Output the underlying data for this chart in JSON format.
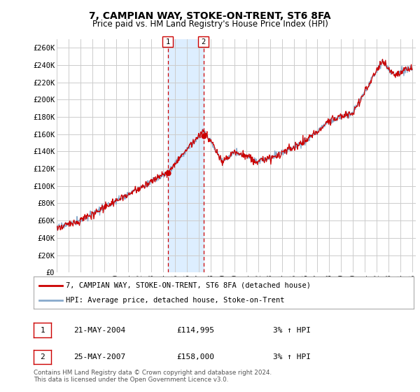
{
  "title": "7, CAMPIAN WAY, STOKE-ON-TRENT, ST6 8FA",
  "subtitle": "Price paid vs. HM Land Registry's House Price Index (HPI)",
  "ylabel_ticks": [
    "£0",
    "£20K",
    "£40K",
    "£60K",
    "£80K",
    "£100K",
    "£120K",
    "£140K",
    "£160K",
    "£180K",
    "£200K",
    "£220K",
    "£240K",
    "£260K"
  ],
  "ylim": [
    0,
    270000
  ],
  "ytick_vals": [
    0,
    20000,
    40000,
    60000,
    80000,
    100000,
    120000,
    140000,
    160000,
    180000,
    200000,
    220000,
    240000,
    260000
  ],
  "xstart_year": 1995,
  "xend_year": 2025,
  "sale1_year": 2004.38,
  "sale1_price": 114995,
  "sale2_year": 2007.38,
  "sale2_price": 158000,
  "sale1_label": "1",
  "sale2_label": "2",
  "line_color_red": "#cc0000",
  "line_color_blue": "#88aacc",
  "shade_color": "#ddeeff",
  "legend_red_label": "7, CAMPIAN WAY, STOKE-ON-TRENT, ST6 8FA (detached house)",
  "legend_blue_label": "HPI: Average price, detached house, Stoke-on-Trent",
  "table_row1": [
    "1",
    "21-MAY-2004",
    "£114,995",
    "3% ↑ HPI"
  ],
  "table_row2": [
    "2",
    "25-MAY-2007",
    "£158,000",
    "3% ↑ HPI"
  ],
  "footer": "Contains HM Land Registry data © Crown copyright and database right 2024.\nThis data is licensed under the Open Government Licence v3.0.",
  "background_color": "#ffffff",
  "grid_color": "#cccccc"
}
